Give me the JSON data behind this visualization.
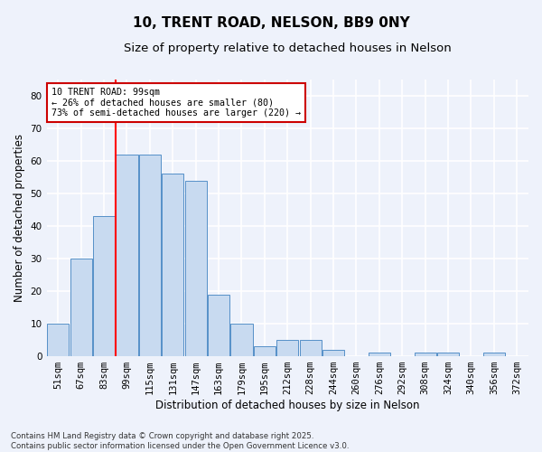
{
  "title1": "10, TRENT ROAD, NELSON, BB9 0NY",
  "title2": "Size of property relative to detached houses in Nelson",
  "xlabel": "Distribution of detached houses by size in Nelson",
  "ylabel": "Number of detached properties",
  "categories": [
    "51sqm",
    "67sqm",
    "83sqm",
    "99sqm",
    "115sqm",
    "131sqm",
    "147sqm",
    "163sqm",
    "179sqm",
    "195sqm",
    "212sqm",
    "228sqm",
    "244sqm",
    "260sqm",
    "276sqm",
    "292sqm",
    "308sqm",
    "324sqm",
    "340sqm",
    "356sqm",
    "372sqm"
  ],
  "values": [
    10,
    30,
    43,
    62,
    62,
    56,
    54,
    19,
    10,
    3,
    5,
    5,
    2,
    0,
    1,
    0,
    1,
    1,
    0,
    1,
    0
  ],
  "bar_color": "#c8daf0",
  "bar_edge_color": "#5590c8",
  "red_line_x": 3,
  "ylim": [
    0,
    85
  ],
  "yticks": [
    0,
    10,
    20,
    30,
    40,
    50,
    60,
    70,
    80
  ],
  "annotation_text": "10 TRENT ROAD: 99sqm\n← 26% of detached houses are smaller (80)\n73% of semi-detached houses are larger (220) →",
  "annotation_box_color": "#ffffff",
  "annotation_box_edge": "#cc0000",
  "footer": "Contains HM Land Registry data © Crown copyright and database right 2025.\nContains public sector information licensed under the Open Government Licence v3.0.",
  "background_color": "#eef2fb",
  "grid_color": "#ffffff",
  "title_fontsize": 11,
  "subtitle_fontsize": 9.5,
  "tick_fontsize": 7.5,
  "label_fontsize": 8.5,
  "footer_fontsize": 6.2
}
